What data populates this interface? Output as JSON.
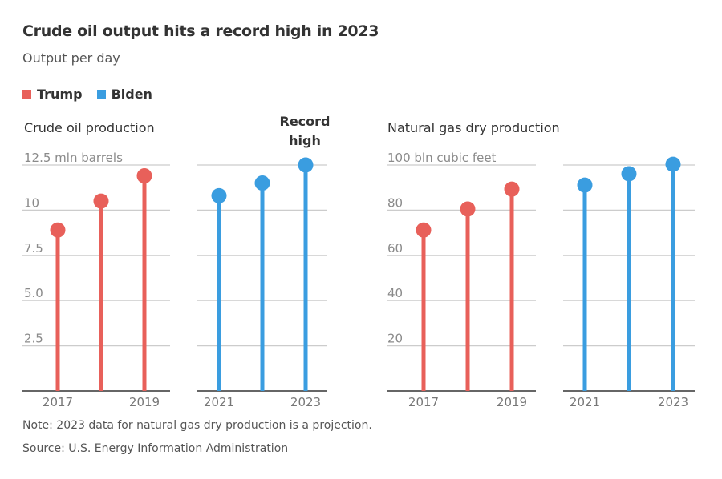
{
  "title": "Crude oil output hits a record high in 2023",
  "subtitle": "Output per day",
  "legend": [
    {
      "label": "Trump",
      "color": "#e8605a"
    },
    {
      "label": "Biden",
      "color": "#3a9de0"
    }
  ],
  "note": "Note: 2023 data for natural gas dry production is a projection.",
  "source": "Source: U.S. Energy Information Administration",
  "colors": {
    "trump": "#e8605a",
    "biden": "#3a9de0",
    "grid": "#cccccc",
    "axis": "#333333"
  },
  "chart_data": [
    {
      "type": "lollipop",
      "title": "Crude oil production",
      "unit_label": "12.5 mln barrels",
      "ylim": [
        0,
        12.5
      ],
      "yticks": [
        {
          "value": 12.5,
          "label": "12.5 mln barrels"
        },
        {
          "value": 10,
          "label": "10"
        },
        {
          "value": 7.5,
          "label": "7.5"
        },
        {
          "value": 5.0,
          "label": "5.0"
        },
        {
          "value": 2.5,
          "label": "2.5"
        }
      ],
      "grid": true,
      "annotation": {
        "text_line1": "Record",
        "text_line2": "high",
        "target_year": 2023
      },
      "series": [
        {
          "name": "Trump",
          "x": [
            2017,
            2018,
            2019
          ],
          "values": [
            8.9,
            10.5,
            11.9
          ],
          "xtick_labels": [
            "2017",
            "",
            "2019"
          ]
        },
        {
          "name": "Biden",
          "x": [
            2021,
            2022,
            2023
          ],
          "values": [
            10.8,
            11.5,
            12.5
          ],
          "xtick_labels": [
            "2021",
            "",
            "2023"
          ]
        }
      ]
    },
    {
      "type": "lollipop",
      "title": "Natural gas dry production",
      "unit_label": "100 bln cubic feet",
      "ylim": [
        0,
        100
      ],
      "yticks": [
        {
          "value": 100,
          "label": "100 bln cubic feet"
        },
        {
          "value": 80,
          "label": "80"
        },
        {
          "value": 60,
          "label": "60"
        },
        {
          "value": 40,
          "label": "40"
        },
        {
          "value": 20,
          "label": "20"
        }
      ],
      "grid": true,
      "series": [
        {
          "name": "Trump",
          "x": [
            2017,
            2018,
            2019
          ],
          "values": [
            71.2,
            80.5,
            89.3
          ],
          "xtick_labels": [
            "2017",
            "",
            "2019"
          ]
        },
        {
          "name": "Biden",
          "x": [
            2021,
            2022,
            2023
          ],
          "values": [
            91.1,
            96.1,
            100.3
          ],
          "xtick_labels": [
            "2021",
            "",
            "2023"
          ]
        }
      ]
    }
  ]
}
